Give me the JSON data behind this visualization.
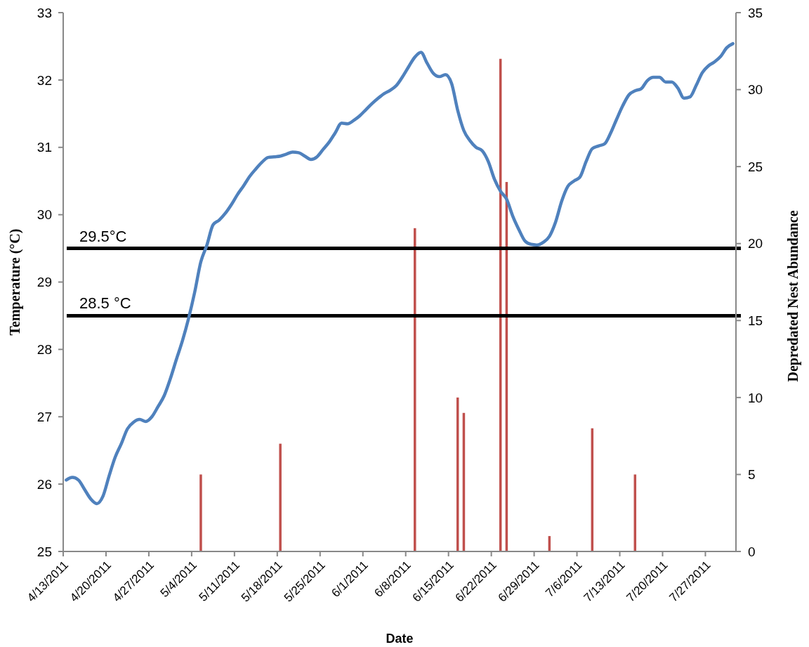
{
  "chart_data": {
    "type": "line",
    "xlabel": "Date",
    "ylabel": "Temperature (°C)",
    "y2label": "Depredated Nest Abundance",
    "xlim": [
      "2011-04-13",
      "2011-08-01"
    ],
    "xticks": [
      {
        "value": "2011-04-13",
        "label": "4/13/2011"
      },
      {
        "value": "2011-04-20",
        "label": "4/20/2011"
      },
      {
        "value": "2011-04-27",
        "label": "4/27/2011"
      },
      {
        "value": "2011-05-04",
        "label": "5/4/2011"
      },
      {
        "value": "2011-05-11",
        "label": "5/11/2011"
      },
      {
        "value": "2011-05-18",
        "label": "5/18/2011"
      },
      {
        "value": "2011-05-25",
        "label": "5/25/2011"
      },
      {
        "value": "2011-06-01",
        "label": "6/1/2011"
      },
      {
        "value": "2011-06-08",
        "label": "6/8/2011"
      },
      {
        "value": "2011-06-15",
        "label": "6/15/2011"
      },
      {
        "value": "2011-06-22",
        "label": "6/22/2011"
      },
      {
        "value": "2011-06-29",
        "label": "6/29/2011"
      },
      {
        "value": "2011-07-06",
        "label": "7/6/2011"
      },
      {
        "value": "2011-07-13",
        "label": "7/13/2011"
      },
      {
        "value": "2011-07-20",
        "label": "7/20/2011"
      },
      {
        "value": "2011-07-27",
        "label": "7/27/2011"
      }
    ],
    "ylim": [
      25,
      33
    ],
    "yticks": [
      25,
      26,
      27,
      28,
      29,
      30,
      31,
      32,
      33
    ],
    "y2lim": [
      0,
      35
    ],
    "y2ticks": [
      0,
      5,
      10,
      15,
      20,
      25,
      30,
      35
    ],
    "grid": false,
    "marker": "none",
    "line_style": "solid",
    "ref_lines": [
      {
        "axis": "y",
        "value": 29.5,
        "label": "29.5°C",
        "color": "#000000"
      },
      {
        "axis": "y",
        "value": 28.5,
        "label": "28.5 °C",
        "color": "#000000"
      }
    ],
    "series": [
      {
        "type": "bar",
        "axis": "y2",
        "color": "#c0504d",
        "x": [
          "2011-05-05T12:00",
          "2011-05-18T12:00",
          "2011-06-09T12:00",
          "2011-06-16T12:00",
          "2011-06-17T12:00",
          "2011-06-23T12:00",
          "2011-06-24T12:00",
          "2011-07-01T12:00",
          "2011-07-08T12:00",
          "2011-07-15T12:00"
        ],
        "values": [
          5,
          7,
          21,
          10,
          9,
          32,
          24,
          1,
          8,
          5
        ]
      },
      {
        "axis": "y",
        "color": "#4f81bd",
        "x": [
          "2011-04-13T12:00",
          "2011-04-14T12:00",
          "2011-04-15T12:00",
          "2011-04-16T12:00",
          "2011-04-17T12:00",
          "2011-04-18T12:00",
          "2011-04-19T12:00",
          "2011-04-20T12:00",
          "2011-04-21T12:00",
          "2011-04-22T12:00",
          "2011-04-23T12:00",
          "2011-04-24T12:00",
          "2011-04-25T12:00",
          "2011-04-26T12:00",
          "2011-04-27T12:00",
          "2011-04-28T12:00",
          "2011-04-29T12:00",
          "2011-04-30T12:00",
          "2011-05-01T12:00",
          "2011-05-02T12:00",
          "2011-05-03T12:00",
          "2011-05-04T12:00",
          "2011-05-05T12:00",
          "2011-05-06T12:00",
          "2011-05-07T12:00",
          "2011-05-08T12:00",
          "2011-05-09T12:00",
          "2011-05-10T12:00",
          "2011-05-11T12:00",
          "2011-05-12T12:00",
          "2011-05-13T12:00",
          "2011-05-14T12:00",
          "2011-05-15T12:00",
          "2011-05-16T12:00",
          "2011-05-17T12:00",
          "2011-05-18T12:00",
          "2011-05-19T12:00",
          "2011-05-20T12:00",
          "2011-05-21T12:00",
          "2011-05-22T12:00",
          "2011-05-23T12:00",
          "2011-05-24T12:00",
          "2011-05-25T12:00",
          "2011-05-26T12:00",
          "2011-05-27T12:00",
          "2011-05-28T12:00",
          "2011-05-29T12:00",
          "2011-05-30T12:00",
          "2011-05-31T12:00",
          "2011-06-01T12:00",
          "2011-06-02T12:00",
          "2011-06-03T12:00",
          "2011-06-04T12:00",
          "2011-06-05T12:00",
          "2011-06-06T12:00",
          "2011-06-07T12:00",
          "2011-06-08T12:00",
          "2011-06-09T12:00",
          "2011-06-10T12:00",
          "2011-06-11T12:00",
          "2011-06-12T12:00",
          "2011-06-13T12:00",
          "2011-06-14T12:00",
          "2011-06-15T12:00",
          "2011-06-16T12:00",
          "2011-06-17T12:00",
          "2011-06-18T12:00",
          "2011-06-19T12:00",
          "2011-06-20T12:00",
          "2011-06-21T12:00",
          "2011-06-22T12:00",
          "2011-06-23T12:00",
          "2011-06-24T12:00",
          "2011-06-25T12:00",
          "2011-06-26T12:00",
          "2011-06-27T12:00",
          "2011-06-28T12:00",
          "2011-06-29T12:00",
          "2011-06-30T12:00",
          "2011-07-01T12:00",
          "2011-07-02T12:00",
          "2011-07-03T12:00",
          "2011-07-04T12:00",
          "2011-07-05T12:00",
          "2011-07-06T12:00",
          "2011-07-07T12:00",
          "2011-07-08T12:00",
          "2011-07-09T12:00",
          "2011-07-10T12:00",
          "2011-07-11T12:00",
          "2011-07-12T12:00",
          "2011-07-13T12:00",
          "2011-07-14T12:00",
          "2011-07-15T12:00",
          "2011-07-16T12:00",
          "2011-07-17T12:00",
          "2011-07-18T12:00",
          "2011-07-19T12:00",
          "2011-07-20T12:00",
          "2011-07-21T12:00",
          "2011-07-22T12:00",
          "2011-07-23T12:00",
          "2011-07-24T12:00",
          "2011-07-25T12:00",
          "2011-07-26T12:00",
          "2011-07-27T12:00",
          "2011-07-28T12:00",
          "2011-07-29T12:00",
          "2011-07-30T12:00",
          "2011-07-31T12:00"
        ],
        "values": [
          26.06,
          26.1,
          26.06,
          25.92,
          25.78,
          25.71,
          25.82,
          26.12,
          26.4,
          26.6,
          26.82,
          26.92,
          26.96,
          26.93,
          27.0,
          27.15,
          27.31,
          27.56,
          27.85,
          28.13,
          28.46,
          28.85,
          29.3,
          29.55,
          29.85,
          29.92,
          30.02,
          30.15,
          30.3,
          30.43,
          30.57,
          30.68,
          30.78,
          30.85,
          30.86,
          30.87,
          30.9,
          30.93,
          30.92,
          30.87,
          30.82,
          30.86,
          30.97,
          31.08,
          31.22,
          31.36,
          31.35,
          31.4,
          31.47,
          31.56,
          31.65,
          31.73,
          31.8,
          31.85,
          31.92,
          32.05,
          32.2,
          32.34,
          32.41,
          32.25,
          32.1,
          32.05,
          32.08,
          31.95,
          31.55,
          31.25,
          31.1,
          31.0,
          30.95,
          30.79,
          30.53,
          30.35,
          30.23,
          29.98,
          29.78,
          29.61,
          29.56,
          29.55,
          29.59,
          29.68,
          29.89,
          30.2,
          30.42,
          30.5,
          30.56,
          30.79,
          30.98,
          31.02,
          31.05,
          31.21,
          31.42,
          31.62,
          31.78,
          31.84,
          31.87,
          31.99,
          32.04,
          32.04,
          31.97,
          31.97,
          31.88,
          31.73,
          31.75,
          31.92,
          32.11,
          32.21,
          32.27,
          32.35,
          32.48,
          32.54
        ]
      }
    ]
  }
}
